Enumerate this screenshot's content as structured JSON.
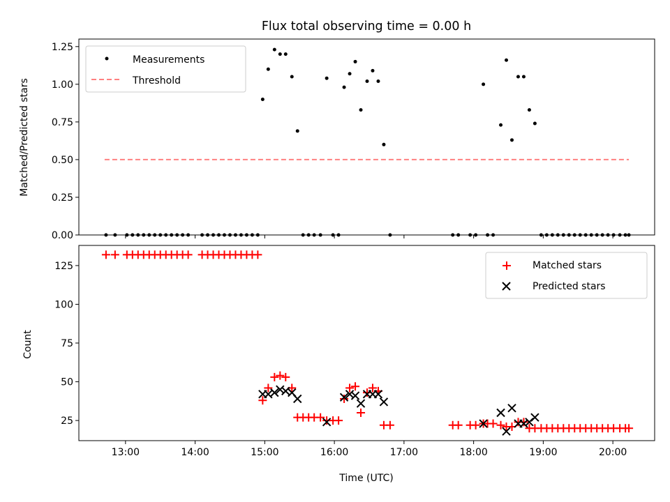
{
  "title": "Flux total observing time = 0.00 h",
  "chart_data": [
    {
      "type": "scatter",
      "ylabel": "Matched/Predicted stars",
      "xlim": [
        12.33,
        20.6
      ],
      "ylim": [
        0,
        1.3
      ],
      "xticks": [
        13,
        14,
        15,
        16,
        17,
        18,
        19,
        20
      ],
      "xtick_labels_visible": false,
      "yticks": [
        0,
        0.25,
        0.5,
        0.75,
        1.0,
        1.25
      ],
      "ytick_labels": [
        "0.00",
        "0.25",
        "0.50",
        "0.75",
        "1.00",
        "1.25"
      ],
      "legend": {
        "position": "upper left",
        "entries": [
          "Measurements",
          "Threshold"
        ]
      },
      "threshold": {
        "name": "Threshold",
        "y": 0.5,
        "x_start": 12.7,
        "x_end": 20.23,
        "color": "#ff8080"
      },
      "series": [
        {
          "name": "Measurements",
          "color": "#000000",
          "x": [
            12.72,
            12.85,
            13.02,
            13.1,
            13.18,
            13.26,
            13.34,
            13.42,
            13.5,
            13.58,
            13.66,
            13.74,
            13.82,
            13.9,
            14.1,
            14.18,
            14.26,
            14.34,
            14.42,
            14.5,
            14.58,
            14.66,
            14.74,
            14.82,
            14.9,
            14.97,
            15.05,
            15.14,
            15.22,
            15.3,
            15.39,
            15.47,
            15.55,
            15.63,
            15.71,
            15.8,
            15.89,
            15.98,
            16.06,
            16.14,
            16.22,
            16.3,
            16.38,
            16.47,
            16.55,
            16.63,
            16.71,
            16.8,
            17.7,
            17.78,
            17.95,
            18.03,
            18.14,
            18.2,
            18.28,
            18.39,
            18.47,
            18.55,
            18.64,
            18.72,
            18.8,
            18.88,
            18.97,
            19.05,
            19.13,
            19.21,
            19.29,
            19.37,
            19.45,
            19.53,
            19.61,
            19.69,
            19.77,
            19.85,
            19.93,
            20.01,
            20.1,
            20.18,
            20.23
          ],
          "y": [
            0,
            0,
            0,
            0,
            0,
            0,
            0,
            0,
            0,
            0,
            0,
            0,
            0,
            0,
            0,
            0,
            0,
            0,
            0,
            0,
            0,
            0,
            0,
            0,
            0,
            0.9,
            1.1,
            1.23,
            1.2,
            1.2,
            1.05,
            0.69,
            0,
            0,
            0,
            0,
            1.04,
            0,
            0,
            0.98,
            1.07,
            1.15,
            0.83,
            1.02,
            1.09,
            1.02,
            0.6,
            0,
            0,
            0,
            0,
            0,
            1.0,
            0,
            0,
            0.73,
            1.16,
            0.63,
            1.05,
            1.05,
            0.83,
            0.74,
            0,
            0,
            0,
            0,
            0,
            0,
            0,
            0,
            0,
            0,
            0,
            0,
            0,
            0,
            0,
            0,
            0
          ]
        }
      ]
    },
    {
      "type": "scatter",
      "xlabel": "Time (UTC)",
      "ylabel": "Count",
      "xlim": [
        12.33,
        20.6
      ],
      "ylim": [
        12,
        138
      ],
      "xticks": [
        13,
        14,
        15,
        16,
        17,
        18,
        19,
        20
      ],
      "xtick_labels": [
        "13:00",
        "14:00",
        "15:00",
        "16:00",
        "17:00",
        "18:00",
        "19:00",
        "20:00"
      ],
      "yticks": [
        25,
        50,
        75,
        100,
        125
      ],
      "ytick_labels": [
        "25",
        "50",
        "75",
        "100",
        "125"
      ],
      "legend": {
        "position": "upper right",
        "entries": [
          "Matched stars",
          "Predicted stars"
        ]
      },
      "series": [
        {
          "name": "Matched stars",
          "color": "#ff0000",
          "x": [
            12.72,
            12.85,
            13.02,
            13.1,
            13.18,
            13.26,
            13.34,
            13.42,
            13.5,
            13.58,
            13.66,
            13.74,
            13.82,
            13.9,
            14.1,
            14.18,
            14.26,
            14.34,
            14.42,
            14.5,
            14.58,
            14.66,
            14.74,
            14.82,
            14.9,
            14.97,
            15.05,
            15.14,
            15.22,
            15.3,
            15.39,
            15.47,
            15.55,
            15.63,
            15.71,
            15.8,
            15.89,
            15.98,
            16.06,
            16.14,
            16.22,
            16.3,
            16.38,
            16.47,
            16.55,
            16.63,
            16.71,
            16.8,
            17.7,
            17.78,
            17.95,
            18.03,
            18.14,
            18.2,
            18.28,
            18.39,
            18.47,
            18.55,
            18.64,
            18.72,
            18.8,
            18.88,
            18.97,
            19.05,
            19.13,
            19.21,
            19.29,
            19.37,
            19.45,
            19.53,
            19.61,
            19.69,
            19.77,
            19.85,
            19.93,
            20.01,
            20.1,
            20.18,
            20.23
          ],
          "y": [
            132,
            132,
            132,
            132,
            132,
            132,
            132,
            132,
            132,
            132,
            132,
            132,
            132,
            132,
            132,
            132,
            132,
            132,
            132,
            132,
            132,
            132,
            132,
            132,
            132,
            38,
            46,
            53,
            54,
            53,
            46,
            27,
            27,
            27,
            27,
            27,
            25,
            25,
            25,
            39,
            46,
            47,
            30,
            43,
            46,
            44,
            22,
            22,
            22,
            22,
            22,
            22,
            23,
            23,
            23,
            22,
            21,
            21,
            24,
            24,
            20,
            20,
            20,
            20,
            20,
            20,
            20,
            20,
            20,
            20,
            20,
            20,
            20,
            20,
            20,
            20,
            20,
            20,
            20
          ]
        },
        {
          "name": "Predicted stars",
          "color": "#000000",
          "x": [
            14.97,
            15.05,
            15.14,
            15.22,
            15.3,
            15.39,
            15.47,
            15.89,
            16.14,
            16.22,
            16.3,
            16.38,
            16.47,
            16.55,
            16.63,
            16.71,
            18.14,
            18.39,
            18.47,
            18.55,
            18.64,
            18.72,
            18.8,
            18.88
          ],
          "y": [
            42,
            42,
            43,
            45,
            44,
            43,
            39,
            24,
            40,
            42,
            41,
            36,
            42,
            42,
            42,
            37,
            23,
            30,
            18,
            33,
            23,
            23,
            24,
            27
          ]
        }
      ]
    }
  ]
}
